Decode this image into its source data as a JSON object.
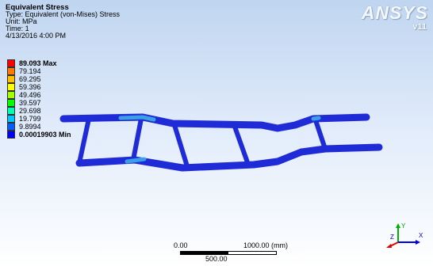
{
  "info": {
    "title": "Equivalent Stress",
    "type": "Type: Equivalent (von-Mises) Stress",
    "unit": "Unit: MPa",
    "time": "Time: 1",
    "date": "4/13/2016 4:00 PM"
  },
  "logo": {
    "brand": "ANSYS",
    "version": "v11"
  },
  "legend": [
    {
      "label": "89.093 Max",
      "color": "#ff0000",
      "bold": true
    },
    {
      "label": "79.194",
      "color": "#ff7a00",
      "bold": false
    },
    {
      "label": "69.295",
      "color": "#ffc000",
      "bold": false
    },
    {
      "label": "59.396",
      "color": "#ffff00",
      "bold": false
    },
    {
      "label": "49.496",
      "color": "#a4ff00",
      "bold": false
    },
    {
      "label": "39.597",
      "color": "#00ff00",
      "bold": false
    },
    {
      "label": "29.698",
      "color": "#00ffb0",
      "bold": false
    },
    {
      "label": "19.799",
      "color": "#00c8ff",
      "bold": false
    },
    {
      "label": "9.8994",
      "color": "#0060ff",
      "bold": false
    },
    {
      "label": "0.00019903 Min",
      "color": "#0000ff",
      "bold": true
    }
  ],
  "scale": {
    "left": "0.00",
    "right": "1000.00 (mm)",
    "mid": "500.00"
  },
  "triad": {
    "y_label": "Y",
    "z_label": "Z",
    "x_label": "X"
  },
  "colors": {
    "model": "#1f2bd6",
    "model_edge": "#0a1080",
    "hotspot": "#3fb4e8"
  }
}
